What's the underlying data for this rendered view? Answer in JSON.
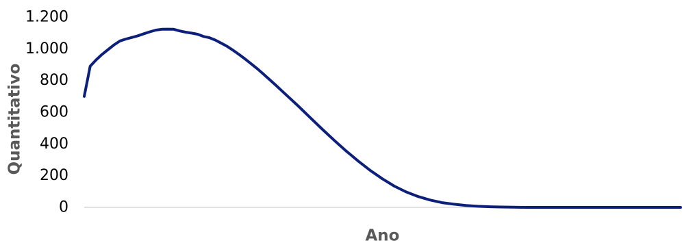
{
  "chart_data": {
    "type": "line",
    "title": "",
    "xlabel": "Ano",
    "ylabel": "Quantitativo",
    "ylim": [
      0,
      1200
    ],
    "y_ticks": [
      {
        "value": 0,
        "label": "0"
      },
      {
        "value": 200,
        "label": "200"
      },
      {
        "value": 400,
        "label": "400"
      },
      {
        "value": 600,
        "label": "600"
      },
      {
        "value": 800,
        "label": "800"
      },
      {
        "value": 1000,
        "label": "1.000"
      },
      {
        "value": 1200,
        "label": "1.200"
      }
    ],
    "x_tick_labels_shown": false,
    "grid": false,
    "legend": "none",
    "series": [
      {
        "color": "#0c1f7a",
        "x": [
          0,
          1,
          2,
          3,
          4,
          5,
          6,
          7,
          8,
          9,
          10,
          11,
          12,
          13,
          14,
          15,
          16,
          17,
          18,
          19,
          20,
          21,
          22,
          23,
          24,
          25,
          26,
          27,
          28,
          29,
          30,
          32,
          34,
          36,
          38,
          40,
          42,
          44,
          46,
          48,
          50,
          52,
          54,
          56,
          58,
          60,
          62,
          64,
          66,
          68,
          70,
          72,
          74,
          76,
          78,
          80,
          82,
          84,
          86,
          88,
          90,
          92,
          94,
          96,
          98,
          100
        ],
        "y": [
          700,
          890,
          930,
          965,
          995,
          1025,
          1050,
          1062,
          1072,
          1082,
          1095,
          1107,
          1118,
          1123,
          1124,
          1123,
          1113,
          1105,
          1099,
          1092,
          1078,
          1070,
          1055,
          1035,
          1015,
          990,
          963,
          935,
          905,
          875,
          842,
          775,
          705,
          635,
          562,
          490,
          420,
          353,
          290,
          232,
          180,
          134,
          97,
          68,
          46,
          30,
          20,
          12,
          7,
          4,
          2,
          1,
          0,
          0,
          0,
          0,
          0,
          0,
          0,
          0,
          0,
          0,
          0,
          0,
          0,
          0
        ]
      }
    ]
  }
}
